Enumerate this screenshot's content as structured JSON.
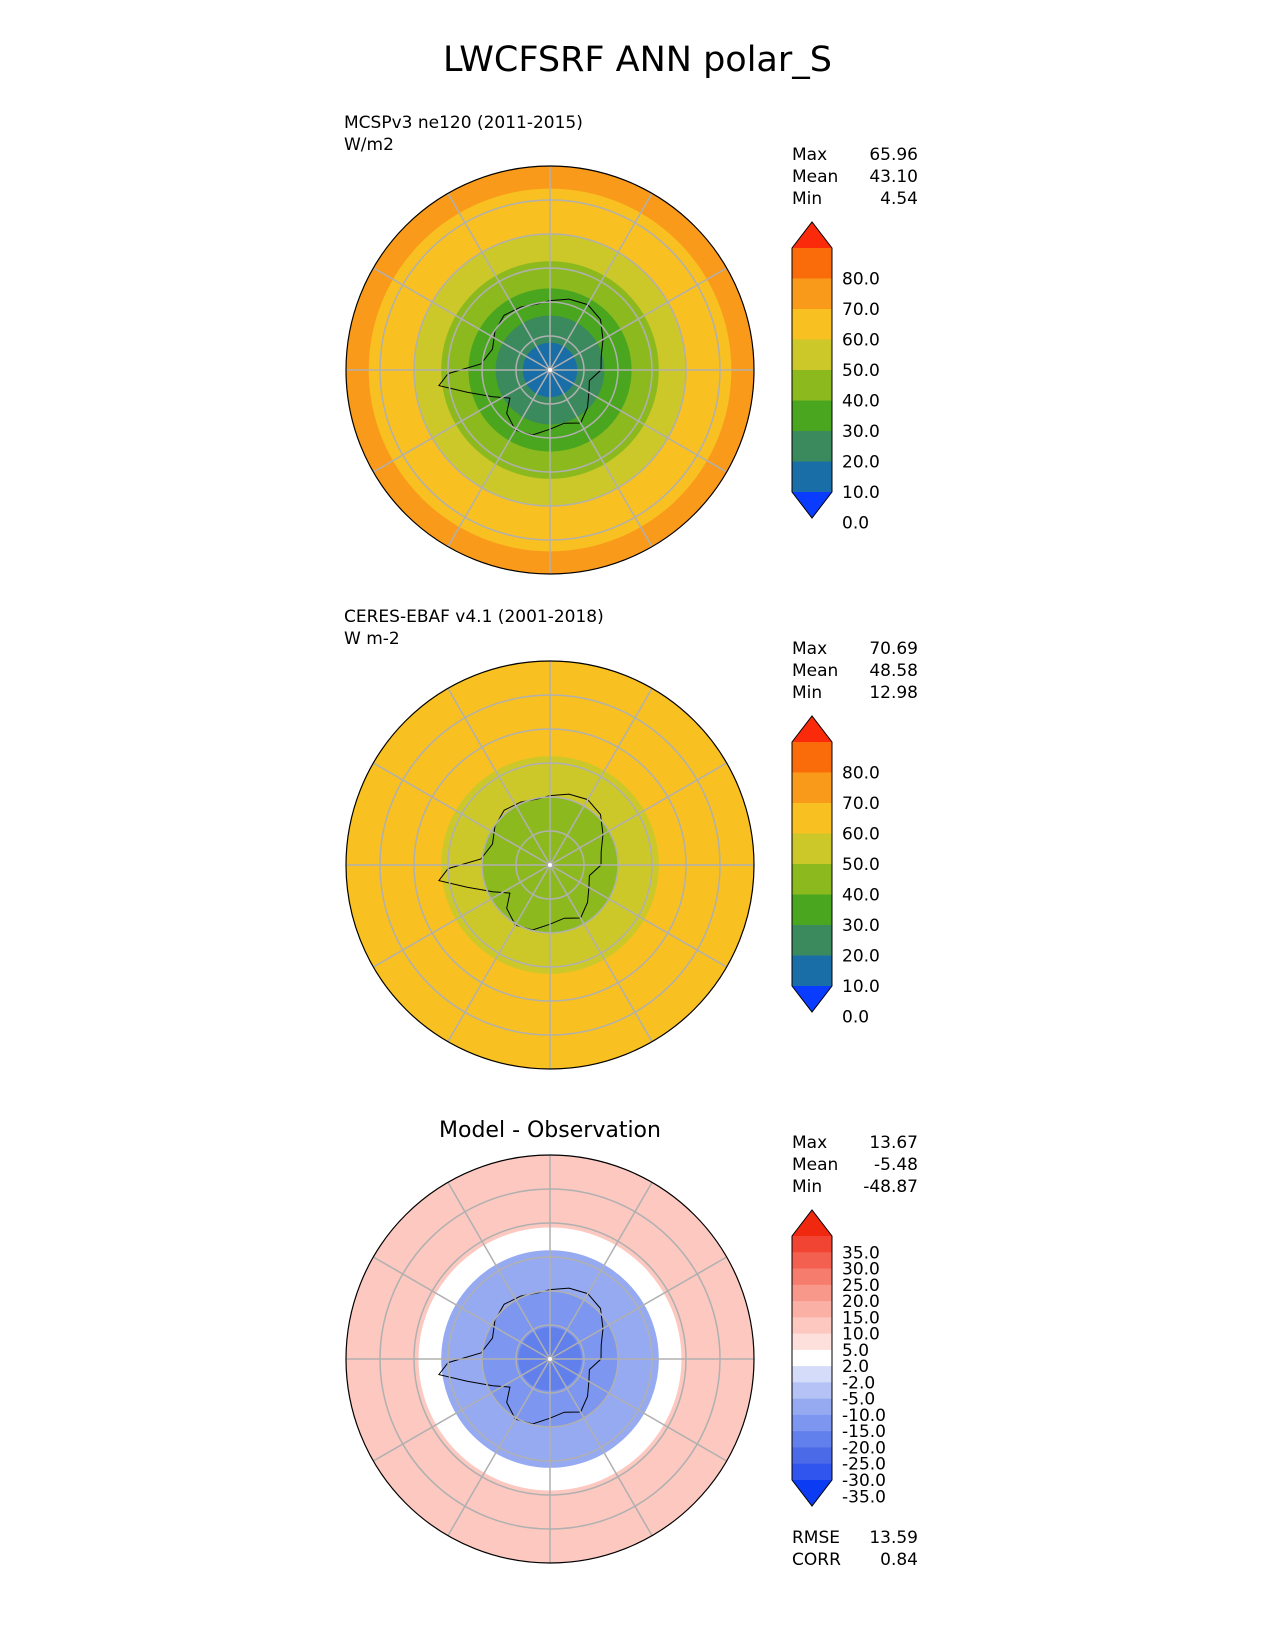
{
  "title": "LWCFSRF ANN polar_S",
  "panels": [
    {
      "id": "model",
      "subtitle_line1": "MCSPv3 ne120 (2011-2015)",
      "subtitle_line2": "W/m2",
      "stats": {
        "max_label": "Max",
        "max": "65.96",
        "mean_label": "Mean",
        "mean": "43.10",
        "min_label": "Min",
        "min": "4.54"
      }
    },
    {
      "id": "obs",
      "subtitle_line1": "CERES-EBAF v4.1 (2001-2018)",
      "subtitle_line2": "W m-2",
      "stats": {
        "max_label": "Max",
        "max": "70.69",
        "mean_label": "Mean",
        "mean": "48.58",
        "min_label": "Min",
        "min": "12.98"
      }
    },
    {
      "id": "diff",
      "heading": "Model - Observation",
      "stats": {
        "max_label": "Max",
        "max": "13.67",
        "mean_label": "Mean",
        "mean": "-5.48",
        "min_label": "Min",
        "min": "-48.87"
      },
      "metrics": {
        "rmse_label": "RMSE",
        "rmse": "13.59",
        "corr_label": "CORR",
        "corr": "0.84"
      }
    }
  ],
  "chart_data": [
    {
      "type": "heatmap",
      "projection": "south-polar-stereographic",
      "title": "MCSPv3 ne120 (2011-2015)",
      "units": "W/m2",
      "stats": {
        "max": 65.96,
        "mean": 43.1,
        "min": 4.54
      },
      "colorbar": {
        "levels": [
          0,
          10,
          20,
          30,
          40,
          50,
          60,
          70,
          80
        ],
        "tick_labels": [
          "80.0",
          "70.0",
          "60.0",
          "50.0",
          "40.0",
          "30.0",
          "20.0",
          "10.0",
          "0.0"
        ],
        "colors": [
          "#0a3cff",
          "#1a6ea8",
          "#3a8a5e",
          "#4aa61e",
          "#8cba1e",
          "#ccc82a",
          "#f8c020",
          "#fa9a1a",
          "#fa6c0a",
          "#fa2a0a"
        ]
      },
      "field_rings_by_colat": [
        {
          "colat_range": [
            0,
            12
          ],
          "value": 5
        },
        {
          "colat_range": [
            12,
            24
          ],
          "value": 15
        },
        {
          "colat_range": [
            24,
            36
          ],
          "value": 25
        },
        {
          "colat_range": [
            36,
            48
          ],
          "value": 35
        },
        {
          "colat_range": [
            48,
            60
          ],
          "value": 45
        },
        {
          "colat_range": [
            60,
            80
          ],
          "value": 55
        },
        {
          "colat_range": [
            80,
            90
          ],
          "value": 65
        }
      ]
    },
    {
      "type": "heatmap",
      "projection": "south-polar-stereographic",
      "title": "CERES-EBAF v4.1 (2001-2018)",
      "units": "W m-2",
      "stats": {
        "max": 70.69,
        "mean": 48.58,
        "min": 12.98
      },
      "colorbar": {
        "levels": [
          0,
          10,
          20,
          30,
          40,
          50,
          60,
          70,
          80
        ],
        "tick_labels": [
          "80.0",
          "70.0",
          "60.0",
          "50.0",
          "40.0",
          "30.0",
          "20.0",
          "10.0",
          "0.0"
        ],
        "colors": [
          "#0a3cff",
          "#1a6ea8",
          "#3a8a5e",
          "#4aa61e",
          "#8cba1e",
          "#ccc82a",
          "#f8c020",
          "#fa9a1a",
          "#fa6c0a",
          "#fa2a0a"
        ]
      },
      "field_rings_by_colat": [
        {
          "colat_range": [
            0,
            14
          ],
          "value": 35
        },
        {
          "colat_range": [
            14,
            30
          ],
          "value": 38
        },
        {
          "colat_range": [
            30,
            48
          ],
          "value": 45
        },
        {
          "colat_range": [
            48,
            90
          ],
          "value": 55
        }
      ]
    },
    {
      "type": "heatmap",
      "projection": "south-polar-stereographic",
      "title": "Model - Observation",
      "stats": {
        "max": 13.67,
        "mean": -5.48,
        "min": -48.87
      },
      "metrics": {
        "rmse": 13.59,
        "corr": 0.84
      },
      "colorbar": {
        "levels": [
          -35,
          -30,
          -25,
          -20,
          -15,
          -10,
          -5,
          -2,
          2,
          5,
          10,
          15,
          20,
          25,
          30,
          35
        ],
        "tick_labels": [
          "35.0",
          "30.0",
          "25.0",
          "20.0",
          "15.0",
          "10.0",
          "5.0",
          "2.0",
          "-2.0",
          "-5.0",
          "-10.0",
          "-15.0",
          "-20.0",
          "-25.0",
          "-30.0",
          "-35.0"
        ],
        "colors": [
          "#0b3cf4",
          "#2f55ee",
          "#4a6ae8",
          "#6280ec",
          "#7d96f0",
          "#96aaf2",
          "#b4c2f6",
          "#d4dcfa",
          "#ffffff",
          "#fde0dc",
          "#fcc8c0",
          "#fab0a4",
          "#f8988a",
          "#f67c6e",
          "#f46050",
          "#f24432",
          "#f02810"
        ]
      },
      "field_rings_by_colat": [
        {
          "colat_range": [
            0,
            14
          ],
          "value": -22
        },
        {
          "colat_range": [
            14,
            30
          ],
          "value": -18
        },
        {
          "colat_range": [
            30,
            48
          ],
          "value": -12
        },
        {
          "colat_range": [
            48,
            58
          ],
          "value": 0
        },
        {
          "colat_range": [
            58,
            90
          ],
          "value": 7
        }
      ]
    }
  ]
}
